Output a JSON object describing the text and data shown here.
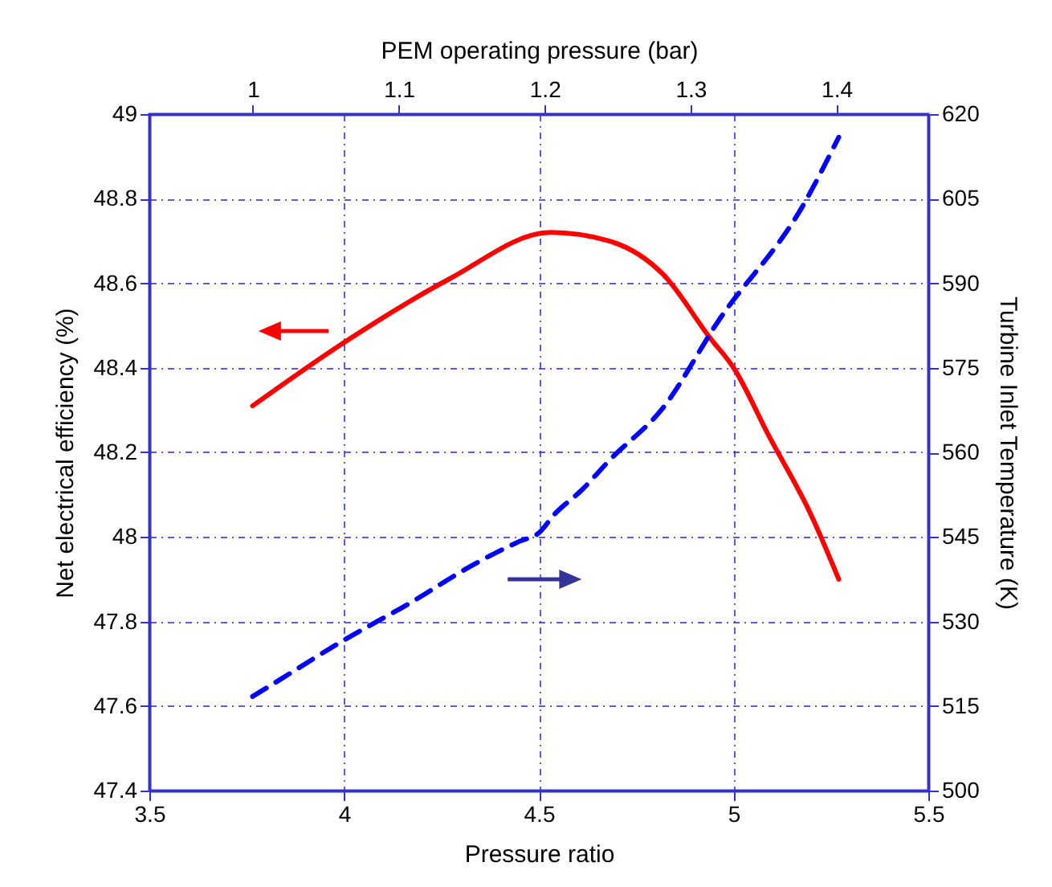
{
  "chart_data": {
    "type": "line",
    "xlabel": "Pressure ratio",
    "ylabel": "Net electrical efficiency (%)",
    "y2label": "Turbine Inlet Temperature (K)",
    "x2label": "PEM operating pressure (bar)",
    "xlim": [
      3.5,
      5.5
    ],
    "xticks": [
      3.5,
      4,
      4.5,
      5,
      5.5
    ],
    "ylim": [
      47.4,
      49
    ],
    "yticks": [
      47.4,
      47.6,
      47.8,
      48,
      48.2,
      48.4,
      48.6,
      48.8,
      49
    ],
    "y2lim": [
      500,
      620
    ],
    "y2ticks": [
      500,
      515,
      530,
      545,
      560,
      575,
      590,
      605,
      620
    ],
    "x2lim": [
      0.929,
      1.463
    ],
    "x2ticks": [
      1,
      1.1,
      1.2,
      1.3,
      1.4
    ],
    "grid": true,
    "series": [
      {
        "color": "#ff0000",
        "line_style": "solid",
        "x": [
          3.765,
          4.0,
          4.27,
          4.53,
          4.68,
          4.82,
          4.94,
          5.0,
          5.09,
          5.2,
          5.27
        ],
        "values": [
          48.31,
          48.46,
          48.61,
          48.72,
          48.7,
          48.62,
          48.47,
          48.4,
          48.24,
          48.05,
          47.9
        ]
      },
      {
        "color": "#0000ff",
        "line_style": "dashed",
        "axis": "y2",
        "x": [
          3.765,
          3.81,
          4.0,
          4.17,
          4.33,
          4.45,
          4.5,
          4.54,
          4.61,
          4.68,
          4.82,
          4.96,
          5.18,
          5.27
        ],
        "values": [
          516.7,
          518.6,
          526.7,
          533.3,
          540.0,
          544.2,
          545.7,
          549.0,
          553.3,
          558.5,
          568.0,
          583.2,
          604.0,
          615.9
        ]
      }
    ]
  }
}
